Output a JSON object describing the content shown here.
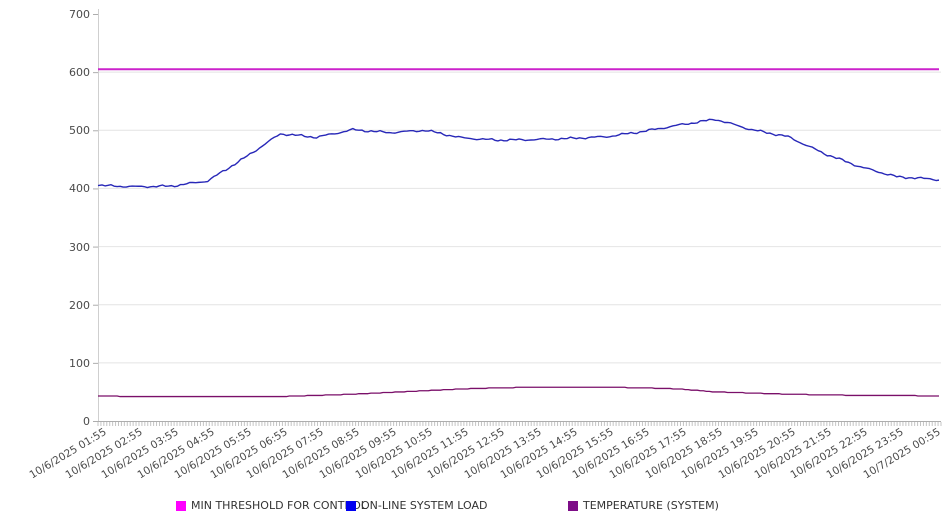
{
  "chart_data": {
    "type": "line",
    "title": "",
    "xlabel": "",
    "ylabel": "",
    "ylim": [
      0,
      700
    ],
    "y_ticks": [
      0,
      100,
      200,
      300,
      400,
      500,
      600,
      700
    ],
    "grid": "horizontal",
    "legend_position": "bottom",
    "x_labels": [
      "10/6/2025 01:55",
      "10/6/2025 02:55",
      "10/6/2025 03:55",
      "10/6/2025 04:55",
      "10/6/2025 05:55",
      "10/6/2025 06:55",
      "10/6/2025 07:55",
      "10/6/2025 08:55",
      "10/6/2025 09:55",
      "10/6/2025 10:55",
      "10/6/2025 11:55",
      "10/6/2025 12:55",
      "10/6/2025 13:55",
      "10/6/2025 14:55",
      "10/6/2025 15:55",
      "10/6/2025 16:55",
      "10/6/2025 17:55",
      "10/6/2025 18:55",
      "10/6/2025 19:55",
      "10/6/2025 20:55",
      "10/6/2025 21:55",
      "10/6/2025 22:55",
      "10/6/2025 23:55",
      "10/7/2025 00:55"
    ],
    "series": [
      {
        "name": "MIN THRESHOLD FOR CONTROL",
        "kind": "threshold",
        "value": 605,
        "color": "#cc22cc",
        "swatch": "#ff00ff"
      },
      {
        "name": "ON-LINE SYSTEM LOAD",
        "kind": "line",
        "values": [
          405,
          403,
          404,
          413,
          452,
          494,
          488,
          501,
          496,
          500,
          487,
          483,
          484,
          486,
          489,
          498,
          509,
          519,
          501,
          489,
          460,
          437,
          420,
          416
        ],
        "color": "#2828b8",
        "swatch": "#0000f0"
      },
      {
        "name": "TEMPERATURE (SYSTEM)",
        "kind": "line",
        "values": [
          43,
          42,
          42,
          42,
          42,
          42,
          44,
          46,
          49,
          52,
          55,
          57,
          58,
          58,
          58,
          57,
          55,
          50,
          48,
          46,
          45,
          44,
          44,
          43
        ],
        "color": "#7a0f69",
        "swatch": "#7d0d87"
      }
    ],
    "axis_colors": {
      "grid": "#e4e4e4",
      "axis_left": "#cfcfcf",
      "axis_bottom": "#adadad",
      "minor_tick": "#c4c4c4",
      "tick_text": "#4a4a4a"
    }
  }
}
